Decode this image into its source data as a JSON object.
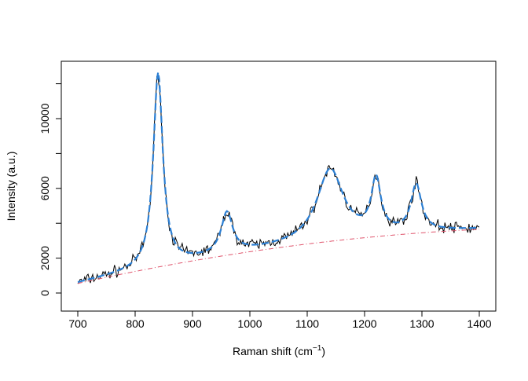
{
  "chart_data": {
    "type": "line",
    "title": "",
    "xlabel": "Raman shift (cm",
    "xlabel_superscript": "−1",
    "xlabel_suffix": ")",
    "ylabel": "Intensity (a.u.)",
    "xlim": [
      700,
      1400
    ],
    "ylim": [
      0,
      12750
    ],
    "x_ticks": [
      700,
      800,
      900,
      1000,
      1100,
      1200,
      1300,
      1400
    ],
    "y_ticks": [
      0,
      2000,
      4000,
      6000,
      8000,
      10000,
      12000
    ],
    "y_tick_labels": {
      "0": "0",
      "2000": "2000",
      "6000": "6000",
      "10000": "10000"
    },
    "grid": false,
    "baseline_points": [
      [
        700,
        550
      ],
      [
        1050,
        2600
      ],
      [
        1400,
        3650
      ]
    ],
    "peaks": [
      {
        "center": 840,
        "amplitude": 11100,
        "hwhm": 10
      },
      {
        "center": 960,
        "amplitude": 2350,
        "hwhm": 12
      },
      {
        "center": 1140,
        "amplitude": 4100,
        "hwhm": 28
      },
      {
        "center": 1220,
        "amplitude": 3050,
        "hwhm": 10
      },
      {
        "center": 1290,
        "amplitude": 2670,
        "hwhm": 11
      }
    ],
    "series": [
      {
        "role": "observed spectrum",
        "color": "#000000",
        "style": "solid"
      },
      {
        "role": "fitted curve",
        "color": "#2b7fd4",
        "style": "dashed"
      },
      {
        "role": "baseline",
        "color": "#df536b",
        "style": "dot-dash"
      }
    ]
  }
}
